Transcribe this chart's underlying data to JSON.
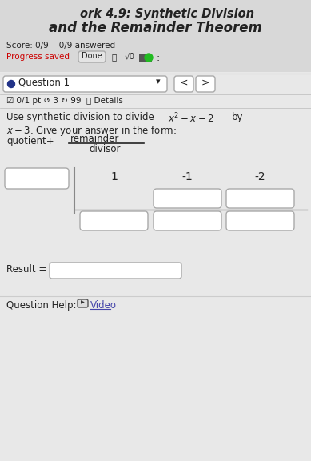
{
  "bg_color": "#e8e8e8",
  "title_line1": "ork 4.9: Synthetic Division",
  "title_line2": "and the Remainder Theorem",
  "score_text": "Score: 0/9    0/9 answered",
  "progress_text": "Progress saved",
  "done_button": "Done",
  "sqrt_text": "√0",
  "question_label": "Question 1",
  "pts_text": "☑ 0/1 pt ↺ 3 ↻ 99  ⓘ Details",
  "problem_line1": "Use synthetic division to divide ",
  "problem_expr": "x² − x − 2",
  "problem_line2": " by",
  "problem_line3": "x − 3. Give your answer in the form:",
  "fraction_num": "remainder",
  "fraction_den": "divisor",
  "quotient_prefix": "quotient+",
  "coefficients": [
    "1",
    "-1",
    "-2"
  ],
  "result_label": "Result =",
  "help_text": "Question Help:",
  "video_text": "Video",
  "primary_color": "#222222",
  "red_color": "#cc0000",
  "link_color": "#4444aa",
  "box_color": "#cccccc",
  "box_fill": "#f5f5f5",
  "done_btn_color": "#dddddd",
  "title_bg": "#d8d8d8",
  "white": "#ffffff"
}
